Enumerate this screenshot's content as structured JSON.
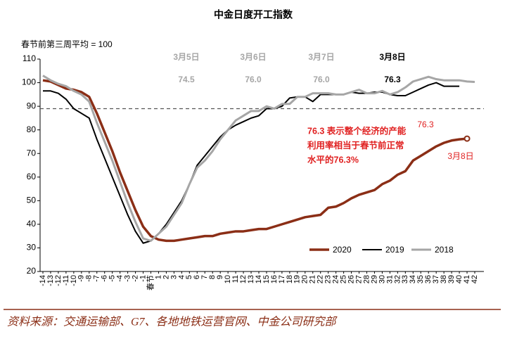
{
  "chart_data": {
    "type": "line",
    "title": "中金日度开工指数",
    "y_label": "春节前第三周平均 = 100",
    "categories": [
      "-14",
      "-13",
      "-12",
      "-11",
      "-10",
      "-9",
      "-8",
      "-7",
      "-6",
      "-5",
      "-4",
      "-3",
      "-2",
      "-1",
      "春节",
      "1",
      "2",
      "3",
      "4",
      "5",
      "6",
      "7",
      "8",
      "9",
      "10",
      "11",
      "12",
      "13",
      "14",
      "15",
      "16",
      "17",
      "18",
      "19",
      "20",
      "21",
      "22",
      "23",
      "24",
      "25",
      "26",
      "27",
      "28",
      "29",
      "30",
      "31",
      "32",
      "33",
      "34",
      "35",
      "36",
      "37",
      "38",
      "39",
      "40",
      "41",
      "42"
    ],
    "series": [
      {
        "name": "2020",
        "color": "#8B2E16",
        "width": 3.5,
        "values": [
          101,
          100.5,
          99,
          97.5,
          97,
          96,
          94,
          87,
          79,
          71,
          62,
          54,
          46,
          39,
          35,
          33.5,
          33,
          33,
          33.5,
          34,
          34.5,
          35,
          35,
          36,
          36.5,
          37,
          37,
          37.5,
          38,
          38,
          39,
          40,
          41,
          42,
          43,
          43.5,
          44,
          47,
          47.5,
          49,
          51,
          52.5,
          53.5,
          54.5,
          57,
          58.5,
          61,
          62.5,
          67,
          69,
          71,
          73,
          74.5,
          75.5,
          76,
          76.3,
          null
        ]
      },
      {
        "name": "2019",
        "color": "#000000",
        "width": 2,
        "values": [
          96.5,
          96.5,
          95.5,
          93,
          89,
          87,
          85,
          76,
          68,
          60,
          52,
          44,
          37,
          32,
          33,
          36,
          40,
          45,
          50,
          57,
          65,
          69,
          73,
          77,
          80,
          82,
          83.5,
          85,
          86,
          89,
          89,
          90,
          93.5,
          94,
          94,
          92,
          95,
          95,
          95,
          95,
          96,
          95.5,
          95.5,
          96,
          96,
          95,
          94.5,
          94.5,
          96,
          97.5,
          99,
          100,
          98.5,
          98.5,
          98.5,
          null,
          null
        ]
      },
      {
        "name": "2018",
        "color": "#A6A6A6",
        "width": 3,
        "values": [
          103,
          101,
          99.5,
          98.5,
          96.5,
          95,
          92,
          83,
          75,
          67,
          58,
          49,
          41,
          34,
          33,
          36,
          39,
          44,
          49,
          57,
          64,
          67,
          71,
          76,
          80,
          84,
          86,
          88,
          88,
          90,
          89,
          91,
          91,
          94,
          94,
          95.5,
          95.5,
          95.5,
          95,
          95,
          96,
          97,
          95.5,
          95.5,
          96.5,
          95,
          96,
          98,
          100.5,
          101.5,
          102.5,
          101.5,
          101,
          101,
          101,
          100.5,
          100.3
        ]
      }
    ],
    "ylim": [
      20,
      110
    ],
    "yticks": [
      20,
      30,
      40,
      50,
      60,
      70,
      80,
      90,
      100,
      110
    ],
    "hline": 89,
    "date_labels": [
      {
        "date": "3月5日",
        "value": "74.5",
        "color": "#A6A6A6"
      },
      {
        "date": "3月6日",
        "value": "76.0",
        "color": "#A6A6A6"
      },
      {
        "date": "3月7日",
        "value": "76.0",
        "color": "#A6A6A6"
      },
      {
        "date": "3月8日",
        "value": "76.3",
        "color": "#000000"
      }
    ],
    "note": [
      "76.3 表示整个经济的产能",
      "利用率相当于春节前正常",
      "水平的76.3%"
    ],
    "end_value": "76.3",
    "end_date": "3月8日",
    "source": "资料来源：交通运输部、G7、各地地铁运营官网、中金公司研究部"
  }
}
